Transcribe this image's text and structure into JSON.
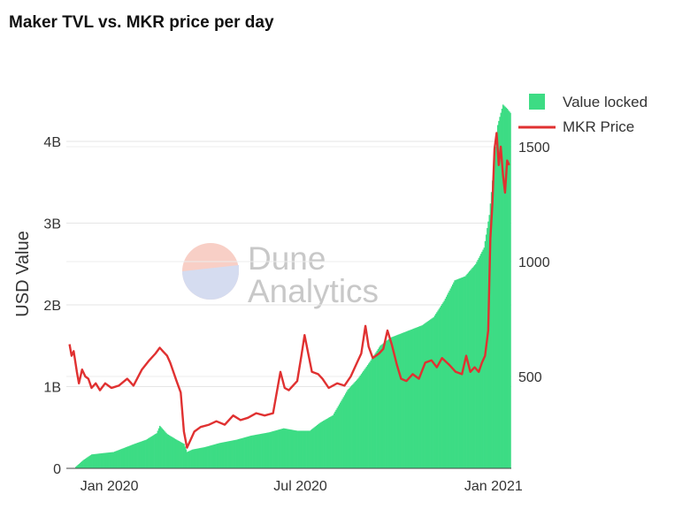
{
  "title": "Maker TVL vs. MKR price per day",
  "watermark": {
    "line1": "Dune",
    "line2": "Analytics"
  },
  "chart_data": {
    "type": "bar",
    "title": "Maker TVL vs. MKR price per day",
    "ylabel": "USD Value",
    "y2label": "",
    "ylim": [
      0,
      4600000000
    ],
    "y2lim": [
      0,
      1600
    ],
    "xlim": [
      "2019-11-21",
      "2021-01-18"
    ],
    "x_ticks": [
      {
        "date": "2020-01-01",
        "label": "Jan 2020"
      },
      {
        "date": "2020-07-01",
        "label": "Jul 2020"
      },
      {
        "date": "2021-01-01",
        "label": "Jan 2021"
      }
    ],
    "y_ticks": [
      {
        "value": 0,
        "label": "0"
      },
      {
        "value": 1000000000,
        "label": "1B"
      },
      {
        "value": 2000000000,
        "label": "2B"
      },
      {
        "value": 3000000000,
        "label": "3B"
      },
      {
        "value": 4000000000,
        "label": "4B"
      }
    ],
    "y2_ticks": [
      {
        "value": 500,
        "label": "500"
      },
      {
        "value": 1000,
        "label": "1000"
      },
      {
        "value": 1500,
        "label": "1500"
      }
    ],
    "grid": true,
    "legend_position": "top-right",
    "series": [
      {
        "name": "Value locked",
        "kind": "bar",
        "axis": "y",
        "color": "#3ddc84",
        "points": [
          [
            "2019-11-30",
            20000000
          ],
          [
            "2019-12-07",
            100000000
          ],
          [
            "2019-12-15",
            170000000
          ],
          [
            "2019-12-25",
            185000000
          ],
          [
            "2020-01-05",
            200000000
          ],
          [
            "2020-01-15",
            250000000
          ],
          [
            "2020-01-25",
            300000000
          ],
          [
            "2020-02-05",
            350000000
          ],
          [
            "2020-02-15",
            430000000
          ],
          [
            "2020-02-18",
            520000000
          ],
          [
            "2020-02-25",
            420000000
          ],
          [
            "2020-03-05",
            350000000
          ],
          [
            "2020-03-12",
            300000000
          ],
          [
            "2020-03-15",
            200000000
          ],
          [
            "2020-03-20",
            230000000
          ],
          [
            "2020-04-01",
            260000000
          ],
          [
            "2020-04-15",
            310000000
          ],
          [
            "2020-05-01",
            350000000
          ],
          [
            "2020-05-15",
            400000000
          ],
          [
            "2020-06-01",
            440000000
          ],
          [
            "2020-06-15",
            490000000
          ],
          [
            "2020-06-28",
            460000000
          ],
          [
            "2020-07-10",
            460000000
          ],
          [
            "2020-07-20",
            560000000
          ],
          [
            "2020-08-01",
            650000000
          ],
          [
            "2020-08-15",
            960000000
          ],
          [
            "2020-08-25",
            1100000000
          ],
          [
            "2020-09-05",
            1300000000
          ],
          [
            "2020-09-15",
            1500000000
          ],
          [
            "2020-09-25",
            1600000000
          ],
          [
            "2020-10-05",
            1650000000
          ],
          [
            "2020-10-15",
            1700000000
          ],
          [
            "2020-10-25",
            1750000000
          ],
          [
            "2020-11-05",
            1850000000
          ],
          [
            "2020-11-15",
            2050000000
          ],
          [
            "2020-11-25",
            2300000000
          ],
          [
            "2020-12-05",
            2350000000
          ],
          [
            "2020-12-15",
            2500000000
          ],
          [
            "2020-12-23",
            2700000000
          ],
          [
            "2020-12-28",
            3100000000
          ],
          [
            "2021-01-02",
            3800000000
          ],
          [
            "2021-01-05",
            4200000000
          ],
          [
            "2021-01-10",
            4450000000
          ],
          [
            "2021-01-14",
            4400000000
          ],
          [
            "2021-01-17",
            4350000000
          ]
        ]
      },
      {
        "name": "MKR Price",
        "kind": "line",
        "axis": "y2",
        "color": "#e03131",
        "points": [
          [
            "2019-11-24",
            640
          ],
          [
            "2019-11-26",
            590
          ],
          [
            "2019-11-28",
            610
          ],
          [
            "2019-12-01",
            520
          ],
          [
            "2019-12-03",
            470
          ],
          [
            "2019-12-06",
            530
          ],
          [
            "2019-12-09",
            500
          ],
          [
            "2019-12-12",
            490
          ],
          [
            "2019-12-15",
            450
          ],
          [
            "2019-12-19",
            470
          ],
          [
            "2019-12-23",
            440
          ],
          [
            "2019-12-28",
            470
          ],
          [
            "2020-01-03",
            450
          ],
          [
            "2020-01-10",
            460
          ],
          [
            "2020-01-18",
            490
          ],
          [
            "2020-01-24",
            460
          ],
          [
            "2020-02-01",
            530
          ],
          [
            "2020-02-08",
            570
          ],
          [
            "2020-02-14",
            600
          ],
          [
            "2020-02-18",
            625
          ],
          [
            "2020-02-21",
            610
          ],
          [
            "2020-02-25",
            590
          ],
          [
            "2020-02-28",
            560
          ],
          [
            "2020-03-05",
            480
          ],
          [
            "2020-03-09",
            430
          ],
          [
            "2020-03-12",
            260
          ],
          [
            "2020-03-15",
            190
          ],
          [
            "2020-03-18",
            220
          ],
          [
            "2020-03-22",
            260
          ],
          [
            "2020-03-28",
            280
          ],
          [
            "2020-04-05",
            290
          ],
          [
            "2020-04-12",
            305
          ],
          [
            "2020-04-20",
            290
          ],
          [
            "2020-04-28",
            330
          ],
          [
            "2020-05-05",
            310
          ],
          [
            "2020-05-12",
            320
          ],
          [
            "2020-05-20",
            340
          ],
          [
            "2020-05-28",
            330
          ],
          [
            "2020-06-05",
            340
          ],
          [
            "2020-06-12",
            520
          ],
          [
            "2020-06-16",
            450
          ],
          [
            "2020-06-20",
            440
          ],
          [
            "2020-06-24",
            460
          ],
          [
            "2020-06-28",
            480
          ],
          [
            "2020-07-02",
            590
          ],
          [
            "2020-07-05",
            680
          ],
          [
            "2020-07-08",
            610
          ],
          [
            "2020-07-12",
            520
          ],
          [
            "2020-07-18",
            510
          ],
          [
            "2020-07-22",
            490
          ],
          [
            "2020-07-28",
            450
          ],
          [
            "2020-08-05",
            470
          ],
          [
            "2020-08-12",
            460
          ],
          [
            "2020-08-18",
            500
          ],
          [
            "2020-08-24",
            560
          ],
          [
            "2020-08-28",
            600
          ],
          [
            "2020-09-01",
            720
          ],
          [
            "2020-09-04",
            630
          ],
          [
            "2020-09-08",
            580
          ],
          [
            "2020-09-14",
            600
          ],
          [
            "2020-09-18",
            620
          ],
          [
            "2020-09-22",
            700
          ],
          [
            "2020-09-26",
            640
          ],
          [
            "2020-10-01",
            550
          ],
          [
            "2020-10-05",
            490
          ],
          [
            "2020-10-10",
            480
          ],
          [
            "2020-10-16",
            510
          ],
          [
            "2020-10-22",
            490
          ],
          [
            "2020-10-28",
            560
          ],
          [
            "2020-11-03",
            570
          ],
          [
            "2020-11-08",
            540
          ],
          [
            "2020-11-13",
            580
          ],
          [
            "2020-11-20",
            550
          ],
          [
            "2020-11-26",
            520
          ],
          [
            "2020-12-02",
            510
          ],
          [
            "2020-12-06",
            590
          ],
          [
            "2020-12-10",
            520
          ],
          [
            "2020-12-14",
            540
          ],
          [
            "2020-12-18",
            520
          ],
          [
            "2020-12-21",
            560
          ],
          [
            "2020-12-24",
            590
          ],
          [
            "2020-12-27",
            700
          ],
          [
            "2020-12-29",
            1100
          ],
          [
            "2020-12-31",
            1250
          ],
          [
            "2021-01-02",
            1490
          ],
          [
            "2021-01-04",
            1560
          ],
          [
            "2021-01-06",
            1420
          ],
          [
            "2021-01-08",
            1500
          ],
          [
            "2021-01-10",
            1380
          ],
          [
            "2021-01-12",
            1300
          ],
          [
            "2021-01-14",
            1440
          ],
          [
            "2021-01-16",
            1420
          ]
        ]
      }
    ]
  }
}
